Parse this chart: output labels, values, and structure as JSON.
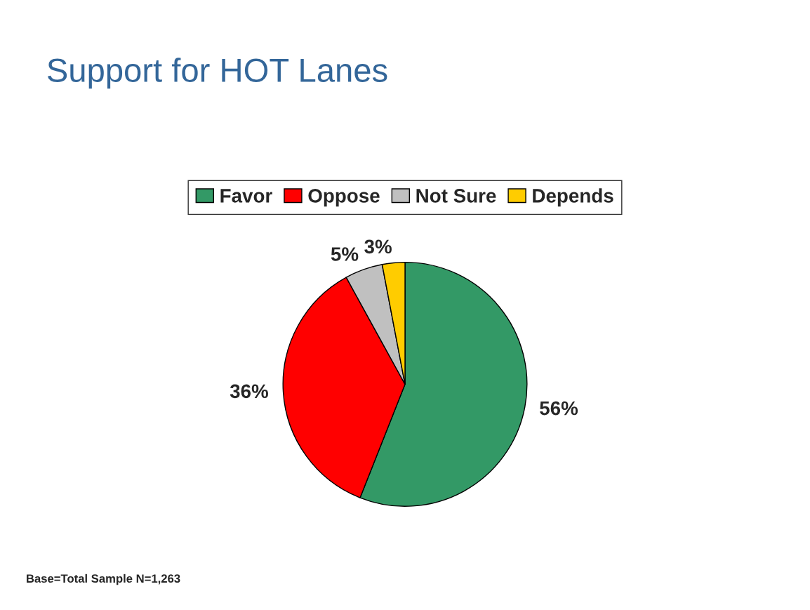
{
  "chart_data": {
    "type": "pie",
    "title": "Support for HOT Lanes",
    "categories": [
      "Favor",
      "Oppose",
      "Not Sure",
      "Depends"
    ],
    "values": [
      56,
      36,
      5,
      3
    ],
    "colors": [
      "#339966",
      "#ff0000",
      "#c0c0c0",
      "#ffcc00"
    ],
    "value_labels": [
      "56%",
      "36%",
      "5%",
      "3%"
    ],
    "legend": "top",
    "annotations": [
      "Base=Total Sample N=1,263"
    ]
  }
}
